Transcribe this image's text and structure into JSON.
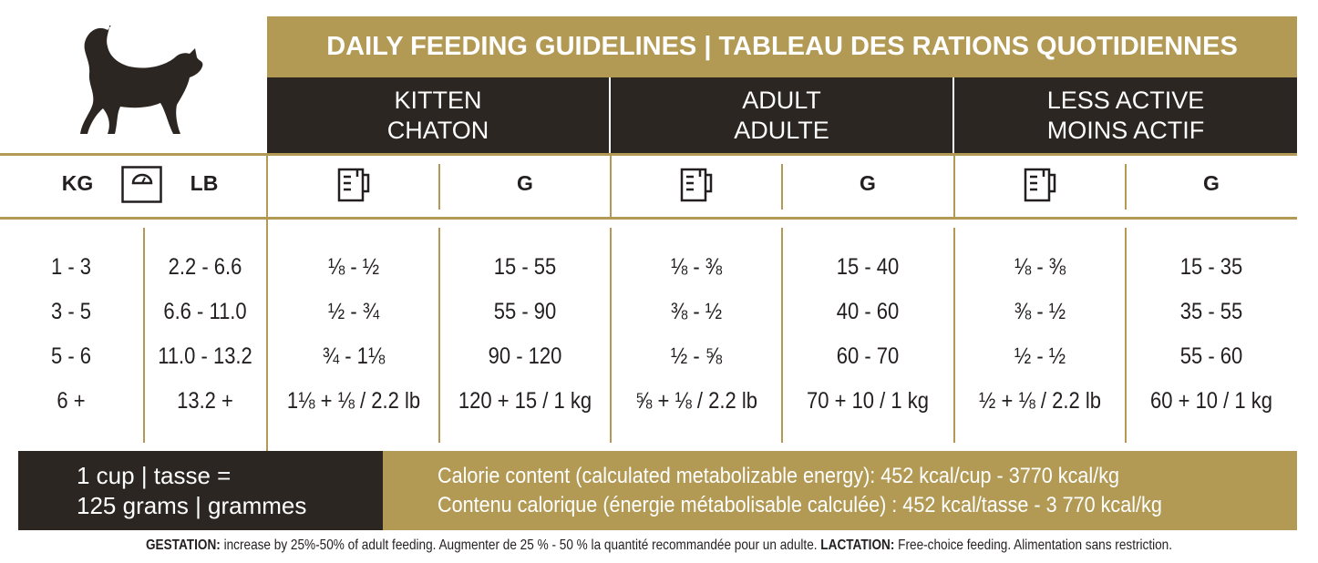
{
  "header": {
    "title": "DAILY FEEDING GUIDELINES | TABLEAU DES RATIONS QUOTIDIENNES",
    "groups": [
      {
        "en": "KITTEN",
        "fr": "CHATON"
      },
      {
        "en": "ADULT",
        "fr": "ADULTE"
      },
      {
        "en": "LESS ACTIVE",
        "fr": "MOINS ACTIF"
      }
    ]
  },
  "columns": {
    "kg": "KG",
    "lb": "LB",
    "grams": [
      "G",
      "G",
      "G"
    ]
  },
  "table": {
    "rows": [
      [
        "1 - 3",
        "2.2 - 6.6",
        "⅛ - ½",
        "15 - 55",
        "⅛ - ⅜",
        "15 - 40",
        "⅛ - ⅜",
        "15 - 35"
      ],
      [
        "3 - 5",
        "6.6 - 11.0",
        "½ - ¾",
        "55 - 90",
        "⅜ - ½",
        "40 - 60",
        "⅜ - ½",
        "35 - 55"
      ],
      [
        "5 - 6",
        "11.0 - 13.2",
        "¾ - 1⅛",
        "90 - 120",
        "½ - ⅝",
        "60 - 70",
        "½ - ½",
        "55 - 60"
      ],
      [
        "6 +",
        "13.2 +",
        "1⅛ + ⅛ / 2.2 lb",
        "120 + 15 / 1 kg",
        "⅝ + ⅛ / 2.2 lb",
        "70 + 10 / 1 kg",
        "½ + ⅛ / 2.2 lb",
        "60 + 10 / 1 kg"
      ]
    ]
  },
  "footer": {
    "cup": [
      "1 cup | tasse =",
      "125 grams | grammes"
    ],
    "calorie": [
      "Calorie content (calculated metabolizable energy): 452 kcal/cup - 3770 kcal/kg",
      "Contenu calorique (énergie métabolisable calculée) : 452 kcal/tasse - 3 770 kcal/kg"
    ]
  },
  "note": {
    "gestation_label": "GESTATION:",
    "gestation_text": " increase by 25%-50% of adult feeding. Augmenter de 25 % - 50 % la quantité recommandée pour un adulte.",
    "lactation_label": " LACTATION:",
    "lactation_text": " Free-choice feeding. Alimentation sans restriction."
  }
}
